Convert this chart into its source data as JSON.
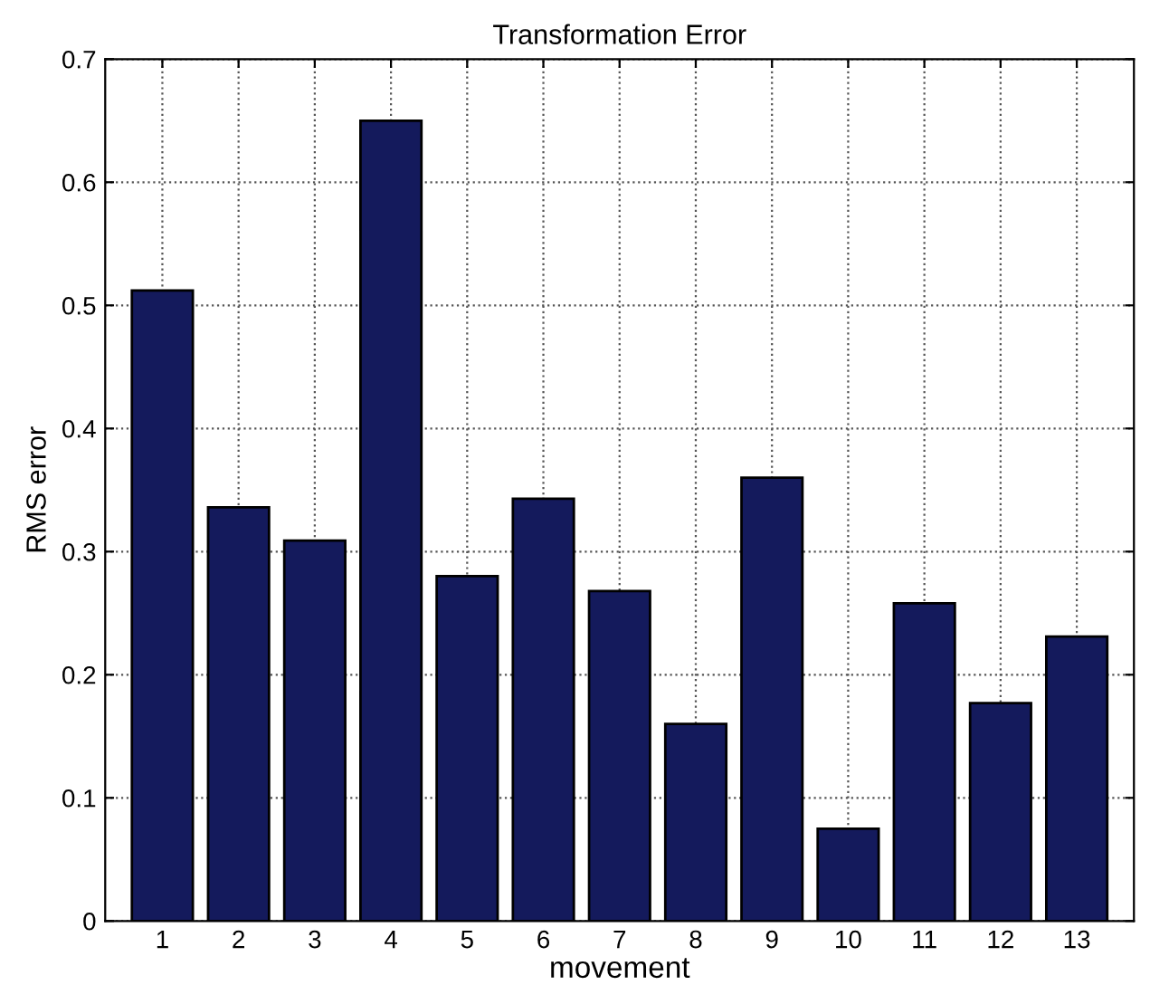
{
  "chart_data": {
    "type": "bar",
    "title": "Transformation Error",
    "xlabel": "movement",
    "ylabel": "RMS error",
    "categories": [
      "1",
      "2",
      "3",
      "4",
      "5",
      "6",
      "7",
      "8",
      "9",
      "10",
      "11",
      "12",
      "13"
    ],
    "values": [
      0.512,
      0.336,
      0.309,
      0.65,
      0.28,
      0.343,
      0.268,
      0.16,
      0.36,
      0.075,
      0.258,
      0.177,
      0.231
    ],
    "color": "#141a5c",
    "ylim": [
      0,
      0.7
    ],
    "yticks": [
      0,
      0.1,
      0.2,
      0.3,
      0.4,
      0.5,
      0.6,
      0.7
    ],
    "grid": true
  }
}
